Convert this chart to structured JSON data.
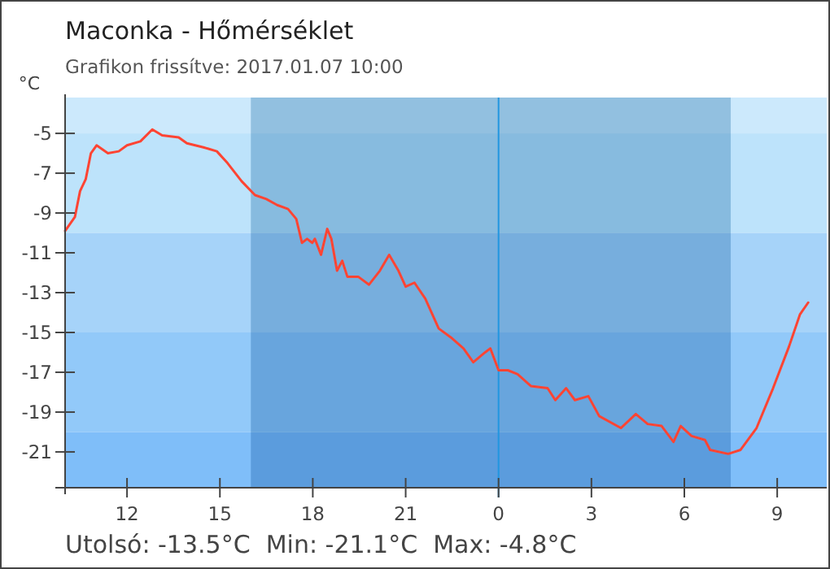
{
  "chart_data": {
    "type": "line",
    "title": "Maconka - Hőmérséklet",
    "subtitle": "Grafikon frissítve: 2017.01.07 10:00",
    "ylabel": "°C",
    "annotations": [
      "Utolsó: -13.5°C  Min: -21.1°C  Max: -4.8°C"
    ],
    "x": [
      "2017-01-06T10:00",
      "2017-01-06T10:19",
      "2017-01-06T10:29",
      "2017-01-06T10:40",
      "2017-01-06T10:50",
      "2017-01-06T11:01",
      "2017-01-06T11:23",
      "2017-01-06T11:44",
      "2017-01-06T12:00",
      "2017-01-06T12:26",
      "2017-01-06T12:49",
      "2017-01-06T13:08",
      "2017-01-06T13:40",
      "2017-01-06T13:56",
      "2017-01-06T14:28",
      "2017-01-06T14:54",
      "2017-01-06T15:15",
      "2017-01-06T15:42",
      "2017-01-06T16:08",
      "2017-01-06T16:30",
      "2017-01-06T16:51",
      "2017-01-06T17:12",
      "2017-01-06T17:28",
      "2017-01-06T17:39",
      "2017-01-06T17:49",
      "2017-01-06T17:59",
      "2017-01-06T18:04",
      "2017-01-06T18:16",
      "2017-01-06T18:28",
      "2017-01-06T18:36",
      "2017-01-06T18:47",
      "2017-01-06T18:57",
      "2017-01-06T19:07",
      "2017-01-06T19:28",
      "2017-01-06T19:49",
      "2017-01-06T20:10",
      "2017-01-06T20:28",
      "2017-01-06T20:46",
      "2017-01-06T21:00",
      "2017-01-06T21:17",
      "2017-01-06T21:38",
      "2017-01-06T22:04",
      "2017-01-06T22:30",
      "2017-01-06T22:52",
      "2017-01-06T23:11",
      "2017-01-06T23:34",
      "2017-01-06T23:44",
      "2017-01-07T00:00",
      "2017-01-07T00:18",
      "2017-01-07T00:37",
      "2017-01-07T01:03",
      "2017-01-07T01:35",
      "2017-01-07T01:50",
      "2017-01-07T02:11",
      "2017-01-07T02:28",
      "2017-01-07T02:54",
      "2017-01-07T03:15",
      "2017-01-07T03:57",
      "2017-01-07T04:26",
      "2017-01-07T04:49",
      "2017-01-07T05:16",
      "2017-01-07T05:39",
      "2017-01-07T05:53",
      "2017-01-07T06:14",
      "2017-01-07T06:40",
      "2017-01-07T06:50",
      "2017-01-07T07:25",
      "2017-01-07T07:49",
      "2017-01-07T08:20",
      "2017-01-07T08:52",
      "2017-01-07T09:23",
      "2017-01-07T09:44",
      "2017-01-07T10:00"
    ],
    "series": [
      {
        "color": "#ff4433",
        "values": [
          -9.9,
          -9.2,
          -7.9,
          -7.3,
          -6,
          -5.6,
          -6,
          -5.9,
          -5.6,
          -5.4,
          -4.8,
          -5.1,
          -5.2,
          -5.5,
          -5.7,
          -5.9,
          -6.5,
          -7.4,
          -8.1,
          -8.3,
          -8.6,
          -8.8,
          -9.3,
          -10.5,
          -10.3,
          -10.5,
          -10.3,
          -11.1,
          -9.8,
          -10.3,
          -11.9,
          -11.4,
          -12.2,
          -12.2,
          -12.6,
          -11.9,
          -11.1,
          -11.9,
          -12.7,
          -12.5,
          -13.3,
          -14.8,
          -15.3,
          -15.8,
          -16.5,
          -16,
          -15.8,
          -16.9,
          -16.9,
          -17.1,
          -17.7,
          -17.8,
          -18.4,
          -17.8,
          -18.4,
          -18.2,
          -19.2,
          -19.8,
          -19.1,
          -19.6,
          -19.7,
          -20.5,
          -19.7,
          -20.2,
          -20.4,
          -20.9,
          -21.1,
          -20.9,
          -19.8,
          -17.8,
          -15.7,
          -14.1,
          -13.5
        ]
      }
    ],
    "xlim": [
      "2017-01-06T10:00",
      "2017-01-07T10:36"
    ],
    "xticks": [
      {
        "value": "2017-01-06T12:00",
        "label": "12"
      },
      {
        "value": "2017-01-06T15:00",
        "label": "15"
      },
      {
        "value": "2017-01-06T18:00",
        "label": "18"
      },
      {
        "value": "2017-01-06T21:00",
        "label": "21"
      },
      {
        "value": "2017-01-07T00:00",
        "label": "0"
      },
      {
        "value": "2017-01-07T03:00",
        "label": "3"
      },
      {
        "value": "2017-01-07T06:00",
        "label": "6"
      },
      {
        "value": "2017-01-07T09:00",
        "label": "9"
      }
    ],
    "ylim": [
      -22.8,
      -3.2
    ],
    "yticks": [
      -5,
      -7,
      -9,
      -11,
      -13,
      -15,
      -17,
      -19,
      -21
    ],
    "marker": "none",
    "line_style": "solid",
    "bands": [
      {
        "axis": "y",
        "from": -5,
        "to": -3.2,
        "color": "#cce9fc"
      },
      {
        "axis": "y",
        "from": -10,
        "to": -5,
        "color": "#bde3fb"
      },
      {
        "axis": "y",
        "from": -15,
        "to": -10,
        "color": "#a6d3f9"
      },
      {
        "axis": "y",
        "from": -20,
        "to": -15,
        "color": "#92c9f9"
      },
      {
        "axis": "y",
        "from": -22.8,
        "to": -20,
        "color": "#7fbef9"
      },
      {
        "axis": "x",
        "from": "2017-01-06T16:00",
        "to": "2017-01-07T07:30",
        "color": "#b6d2e3"
      }
    ],
    "ref_lines": [
      {
        "axis": "x",
        "value": "2017-01-07T00:00",
        "color": "#2196e0"
      }
    ]
  }
}
